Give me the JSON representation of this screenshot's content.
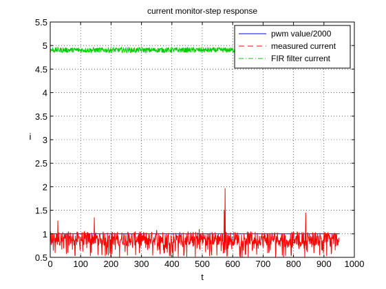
{
  "chart_data": {
    "type": "line",
    "title": "current monitor-step response",
    "xlabel": "t",
    "ylabel": "i",
    "xlim": [
      0,
      1000
    ],
    "ylim": [
      0.5,
      5.5
    ],
    "xticks": [
      0,
      100,
      200,
      300,
      400,
      500,
      600,
      700,
      800,
      900,
      1000
    ],
    "yticks": [
      0.5,
      1,
      1.5,
      2,
      2.5,
      3,
      3.5,
      4,
      4.5,
      5,
      5.5
    ],
    "xtick_labels": [
      "0",
      "100",
      "200",
      "300",
      "400",
      "500",
      "600",
      "700",
      "800",
      "900",
      "1000"
    ],
    "ytick_labels": [
      "0.5",
      "1",
      "1.5",
      "2",
      "2.5",
      "3",
      "3.5",
      "4",
      "4.5",
      "5",
      "5.5"
    ],
    "grid": true,
    "legend_position": "top-right",
    "series": [
      {
        "name": "pwm value/2000",
        "color": "#0000ff",
        "style": "solid",
        "x": [
          0,
          950
        ],
        "y": [
          1.0,
          1.0
        ]
      },
      {
        "name": "measured current",
        "color": "#ff0000",
        "style": "dashed",
        "x_range": [
          0,
          950
        ],
        "typical_range": [
          0.75,
          1.05
        ],
        "floor": 0.5,
        "spikes": [
          {
            "x": 25,
            "y": 1.28
          },
          {
            "x": 145,
            "y": 1.35
          },
          {
            "x": 575,
            "y": 1.97
          },
          {
            "x": 572,
            "y": 1.5
          },
          {
            "x": 840,
            "y": 1.45
          },
          {
            "x": 490,
            "y": 1.1
          },
          {
            "x": 350,
            "y": 1.08
          }
        ]
      },
      {
        "name": "FIR filter current",
        "color": "#00cc00",
        "style": "dash-dot",
        "x_range": [
          0,
          620
        ],
        "typical_range": [
          4.85,
          4.96
        ]
      }
    ]
  }
}
